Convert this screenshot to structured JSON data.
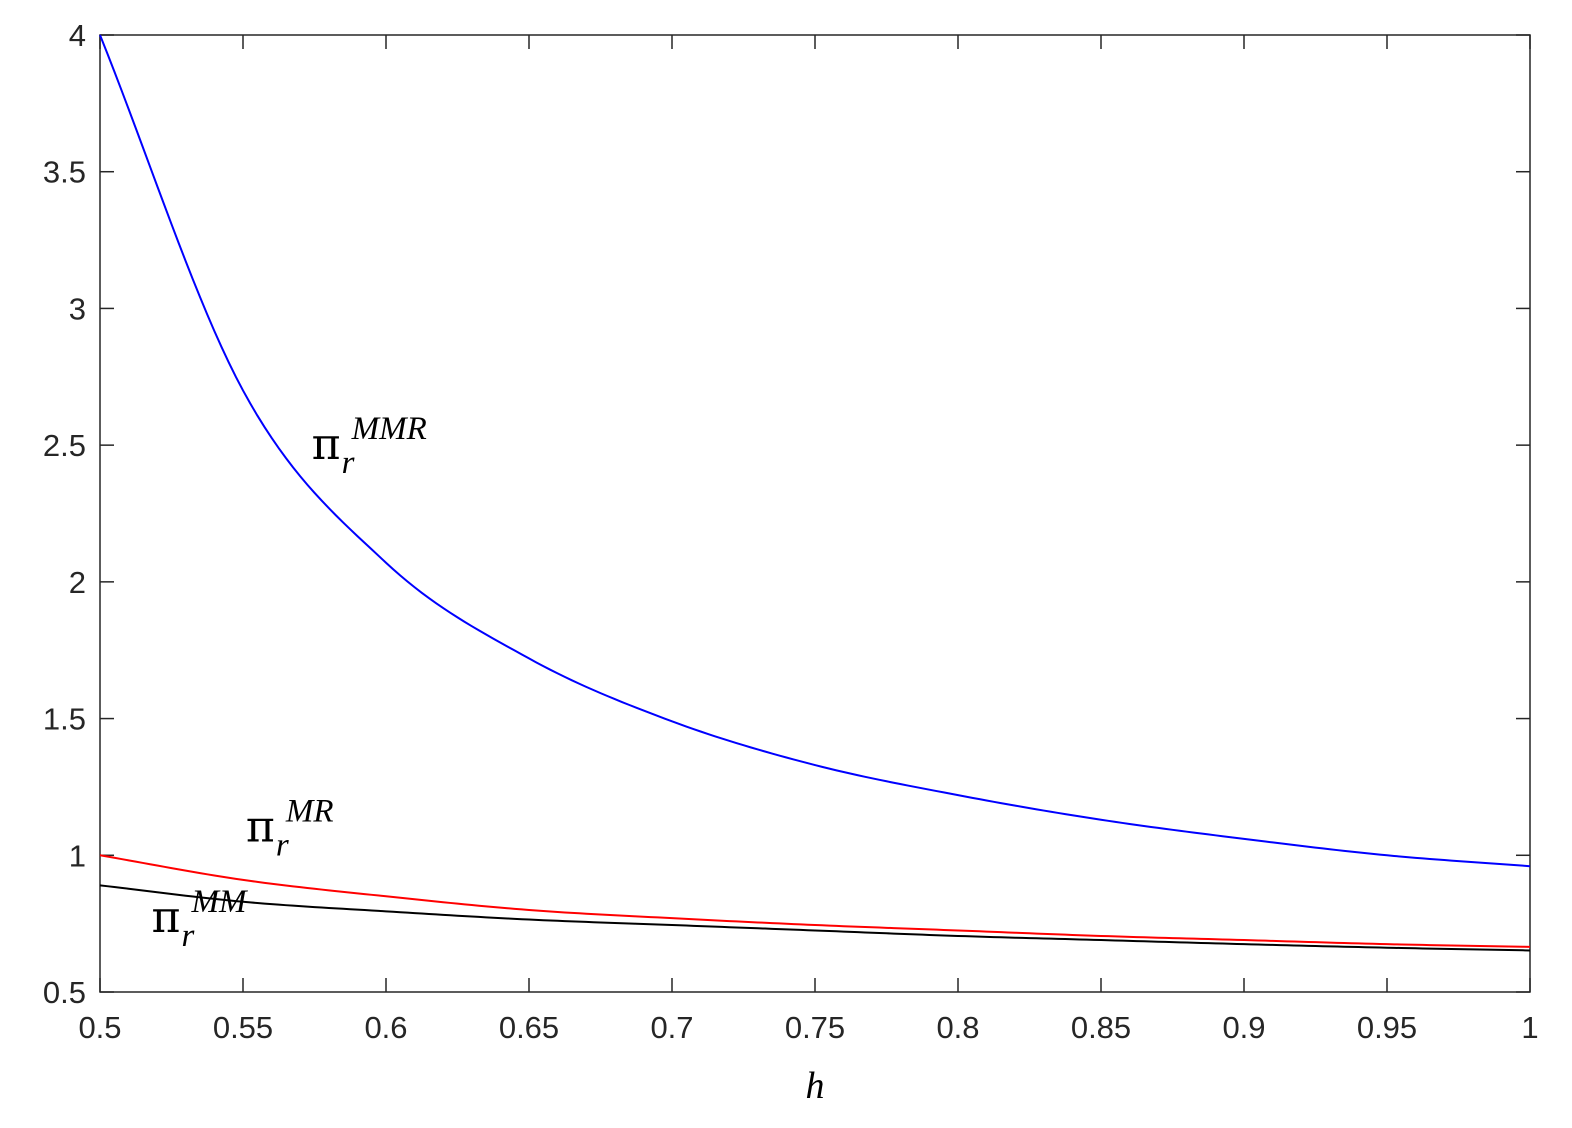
{
  "chart_data": {
    "type": "line",
    "xlabel": "h",
    "ylabel": "",
    "xlim": [
      0.5,
      1
    ],
    "ylim": [
      0.5,
      4
    ],
    "grid": false,
    "x_ticks": [
      "0.5",
      "0.55",
      "0.6",
      "0.65",
      "0.7",
      "0.75",
      "0.8",
      "0.85",
      "0.9",
      "0.95",
      "1"
    ],
    "y_ticks": [
      "0.5",
      "1",
      "1.5",
      "2",
      "2.5",
      "3",
      "3.5",
      "4"
    ],
    "x": [
      0.5,
      0.55,
      0.6,
      0.65,
      0.7,
      0.75,
      0.8,
      0.85,
      0.9,
      0.95,
      1.0
    ],
    "series": [
      {
        "name": "π_r^MMR",
        "color": "#0000ff",
        "values": [
          4.0,
          2.7,
          2.07,
          1.72,
          1.49,
          1.33,
          1.22,
          1.13,
          1.06,
          1.0,
          0.96
        ]
      },
      {
        "name": "π_r^MR",
        "color": "#ff0000",
        "values": [
          1.0,
          0.91,
          0.85,
          0.8,
          0.77,
          0.745,
          0.725,
          0.705,
          0.69,
          0.675,
          0.665
        ]
      },
      {
        "name": "π_r^MM",
        "color": "#000000",
        "values": [
          0.89,
          0.83,
          0.795,
          0.765,
          0.745,
          0.725,
          0.705,
          0.69,
          0.675,
          0.662,
          0.652
        ]
      }
    ],
    "annotations": [
      {
        "base": "π",
        "sub": "r",
        "sup": "MMR",
        "at": [
          0.574,
          2.45
        ]
      },
      {
        "base": "π",
        "sub": "r",
        "sup": "MR",
        "at": [
          0.551,
          1.05
        ]
      },
      {
        "base": "π",
        "sub": "r",
        "sup": "MM",
        "at": [
          0.518,
          0.72
        ]
      }
    ]
  }
}
